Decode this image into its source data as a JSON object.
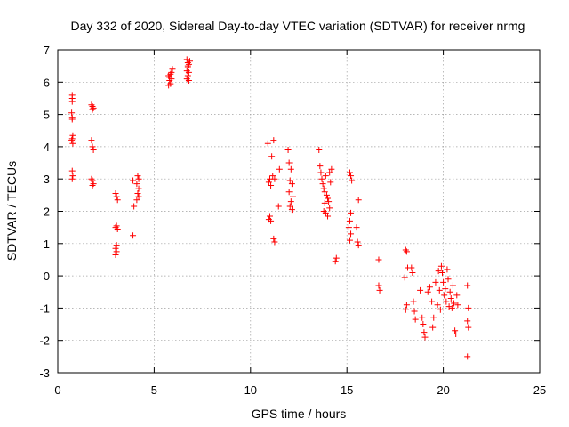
{
  "chart_data": {
    "type": "scatter",
    "title": "Day 332 of 2020, Sidereal Day-to-day VTEC variation (SDTVAR) for receiver nrmg",
    "xlabel": "GPS time / hours",
    "ylabel": "SDTVAR / TECUs",
    "xlim": [
      0,
      25
    ],
    "ylim": [
      -3,
      7
    ],
    "xticks": [
      "0",
      "5",
      "10",
      "15",
      "20",
      "25"
    ],
    "xtick_values": [
      0,
      5,
      10,
      15,
      20,
      25
    ],
    "yticks": [
      "-3",
      "-2",
      "-1",
      "0",
      "1",
      "2",
      "3",
      "4",
      "5",
      "6",
      "7"
    ],
    "ytick_values": [
      -3,
      -2,
      -1,
      0,
      1,
      2,
      3,
      4,
      5,
      6,
      7
    ],
    "grid": true,
    "marker": "+",
    "color": "#ff0000",
    "series": [
      {
        "name": "SDTVAR",
        "points": [
          [
            0.75,
            5.6
          ],
          [
            0.75,
            5.5
          ],
          [
            0.75,
            5.4
          ],
          [
            0.72,
            5.05
          ],
          [
            0.75,
            4.9
          ],
          [
            0.75,
            4.85
          ],
          [
            0.78,
            4.35
          ],
          [
            0.75,
            4.25
          ],
          [
            0.72,
            4.2
          ],
          [
            0.78,
            4.1
          ],
          [
            0.75,
            3.25
          ],
          [
            0.78,
            3.1
          ],
          [
            0.75,
            3.0
          ],
          [
            1.75,
            5.3
          ],
          [
            1.8,
            5.25
          ],
          [
            1.85,
            5.2
          ],
          [
            1.8,
            5.15
          ],
          [
            1.75,
            4.2
          ],
          [
            1.8,
            4.0
          ],
          [
            1.85,
            3.9
          ],
          [
            1.75,
            3.0
          ],
          [
            1.8,
            2.95
          ],
          [
            1.85,
            2.85
          ],
          [
            1.8,
            2.8
          ],
          [
            3.0,
            2.55
          ],
          [
            3.05,
            2.45
          ],
          [
            3.1,
            2.35
          ],
          [
            3.05,
            1.55
          ],
          [
            3.0,
            1.5
          ],
          [
            3.1,
            1.45
          ],
          [
            3.05,
            0.95
          ],
          [
            3.0,
            0.85
          ],
          [
            3.05,
            0.75
          ],
          [
            3.0,
            0.65
          ],
          [
            3.9,
            2.95
          ],
          [
            4.15,
            3.1
          ],
          [
            4.2,
            3.0
          ],
          [
            4.1,
            2.85
          ],
          [
            4.2,
            2.7
          ],
          [
            4.15,
            2.55
          ],
          [
            4.2,
            2.45
          ],
          [
            4.1,
            2.35
          ],
          [
            3.95,
            2.15
          ],
          [
            3.9,
            1.25
          ],
          [
            5.75,
            6.2
          ],
          [
            5.8,
            6.05
          ],
          [
            5.85,
            5.95
          ],
          [
            5.9,
            6.3
          ],
          [
            5.95,
            6.4
          ],
          [
            5.8,
            6.15
          ],
          [
            5.85,
            6.25
          ],
          [
            5.9,
            6.1
          ],
          [
            5.75,
            5.9
          ],
          [
            6.7,
            6.7
          ],
          [
            6.75,
            6.6
          ],
          [
            6.8,
            6.55
          ],
          [
            6.75,
            6.45
          ],
          [
            6.7,
            6.35
          ],
          [
            6.8,
            6.3
          ],
          [
            6.75,
            6.2
          ],
          [
            6.7,
            6.1
          ],
          [
            6.8,
            6.05
          ],
          [
            6.85,
            6.65
          ],
          [
            6.75,
            6.5
          ],
          [
            10.9,
            4.1
          ],
          [
            11.0,
            3.0
          ],
          [
            10.95,
            2.9
          ],
          [
            11.05,
            2.8
          ],
          [
            11.2,
            4.2
          ],
          [
            11.1,
            3.7
          ],
          [
            11.15,
            3.1
          ],
          [
            11.25,
            3.0
          ],
          [
            11.0,
            1.85
          ],
          [
            10.95,
            1.75
          ],
          [
            11.05,
            1.7
          ],
          [
            11.2,
            1.15
          ],
          [
            11.25,
            1.05
          ],
          [
            11.5,
            3.3
          ],
          [
            11.45,
            2.15
          ],
          [
            11.95,
            3.9
          ],
          [
            12.0,
            3.5
          ],
          [
            12.1,
            3.3
          ],
          [
            12.05,
            2.95
          ],
          [
            12.15,
            2.85
          ],
          [
            12.0,
            2.6
          ],
          [
            12.2,
            2.45
          ],
          [
            12.1,
            2.3
          ],
          [
            12.05,
            2.15
          ],
          [
            12.15,
            2.05
          ],
          [
            13.55,
            3.9
          ],
          [
            13.6,
            3.4
          ],
          [
            13.65,
            3.2
          ],
          [
            13.7,
            3.0
          ],
          [
            13.75,
            2.85
          ],
          [
            13.8,
            2.7
          ],
          [
            13.85,
            2.6
          ],
          [
            13.9,
            3.1
          ],
          [
            13.95,
            2.5
          ],
          [
            14.0,
            2.4
          ],
          [
            14.05,
            2.3
          ],
          [
            14.1,
            2.1
          ],
          [
            13.8,
            2.0
          ],
          [
            13.9,
            1.95
          ],
          [
            14.0,
            1.85
          ],
          [
            13.85,
            2.25
          ],
          [
            14.1,
            3.2
          ],
          [
            14.15,
            2.9
          ],
          [
            14.2,
            3.3
          ],
          [
            14.45,
            0.55
          ],
          [
            14.4,
            0.45
          ],
          [
            15.15,
            3.2
          ],
          [
            15.2,
            3.1
          ],
          [
            15.25,
            2.95
          ],
          [
            15.2,
            1.95
          ],
          [
            15.15,
            1.7
          ],
          [
            15.1,
            1.5
          ],
          [
            15.2,
            1.3
          ],
          [
            15.15,
            1.1
          ],
          [
            15.6,
            2.35
          ],
          [
            15.5,
            1.5
          ],
          [
            15.55,
            1.05
          ],
          [
            15.6,
            0.95
          ],
          [
            16.65,
            0.5
          ],
          [
            16.65,
            -0.3
          ],
          [
            16.7,
            -0.45
          ],
          [
            18.05,
            0.8
          ],
          [
            18.1,
            0.75
          ],
          [
            18.15,
            0.25
          ],
          [
            18.0,
            -0.05
          ],
          [
            18.1,
            -0.9
          ],
          [
            18.05,
            -1.05
          ],
          [
            18.35,
            0.25
          ],
          [
            18.4,
            0.1
          ],
          [
            18.45,
            -0.8
          ],
          [
            18.5,
            -1.1
          ],
          [
            18.55,
            -1.35
          ],
          [
            18.8,
            -0.45
          ],
          [
            18.9,
            -1.3
          ],
          [
            18.95,
            -1.5
          ],
          [
            19.0,
            -1.75
          ],
          [
            19.05,
            -1.9
          ],
          [
            19.2,
            -0.5
          ],
          [
            19.3,
            -0.35
          ],
          [
            19.4,
            -0.8
          ],
          [
            19.5,
            -1.3
          ],
          [
            19.45,
            -1.6
          ],
          [
            19.6,
            -0.2
          ],
          [
            19.7,
            -0.9
          ],
          [
            19.75,
            0.15
          ],
          [
            19.8,
            -0.45
          ],
          [
            19.85,
            -1.05
          ],
          [
            19.9,
            0.3
          ],
          [
            19.95,
            0.1
          ],
          [
            20.0,
            -0.2
          ],
          [
            20.05,
            -0.6
          ],
          [
            20.1,
            -0.4
          ],
          [
            20.15,
            -0.8
          ],
          [
            20.2,
            0.2
          ],
          [
            20.25,
            -0.1
          ],
          [
            20.3,
            -0.95
          ],
          [
            20.35,
            -0.5
          ],
          [
            20.4,
            -0.7
          ],
          [
            20.45,
            -1.0
          ],
          [
            20.5,
            -0.3
          ],
          [
            20.55,
            -0.85
          ],
          [
            20.6,
            -1.7
          ],
          [
            20.65,
            -1.8
          ],
          [
            20.7,
            -0.6
          ],
          [
            20.75,
            -0.9
          ],
          [
            21.25,
            -0.3
          ],
          [
            21.3,
            -1.0
          ],
          [
            21.25,
            -1.4
          ],
          [
            21.3,
            -1.6
          ],
          [
            21.25,
            -2.5
          ]
        ]
      }
    ]
  }
}
